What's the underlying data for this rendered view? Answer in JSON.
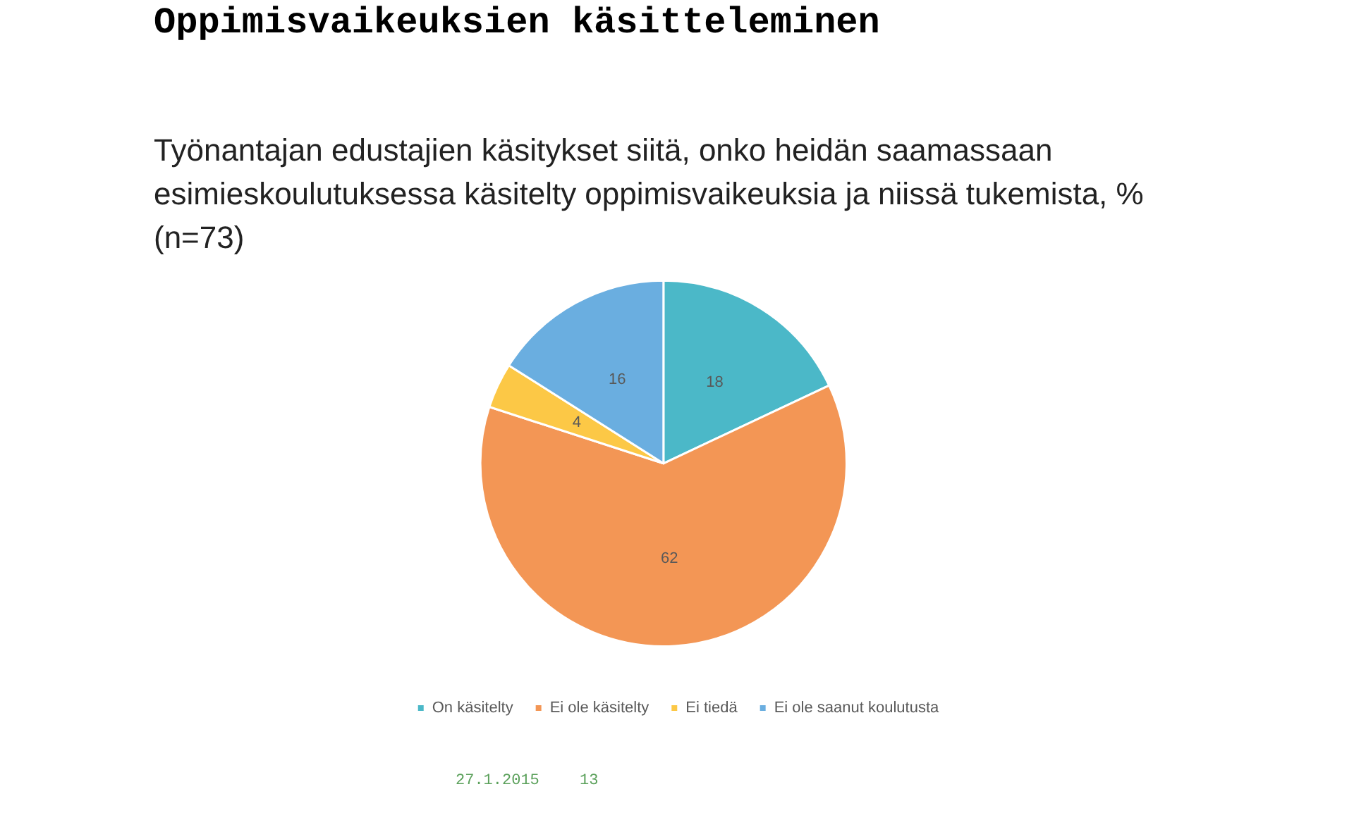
{
  "chart_data": {
    "type": "pie",
    "title": "Oppimisvaikeuksien käsitteleminen",
    "subtitle": "Työnantajan edustajien käsitykset siitä, onko heidän saamassaan esimieskoulutuksessa käsitelty oppimisvaikeuksia ja niissä tukemista, % (n=73)",
    "categories": [
      "On käsitelty",
      "Ei ole käsitelty",
      "Ei tiedä",
      "Ei ole saanut koulutusta"
    ],
    "values": [
      18,
      62,
      4,
      16
    ],
    "colors": [
      "#4bb8c8",
      "#f39655",
      "#fcc846",
      "#6aaee0"
    ],
    "data_labels": true,
    "legend": "bottom",
    "annotations": [
      "27.1.2015",
      "13"
    ]
  }
}
